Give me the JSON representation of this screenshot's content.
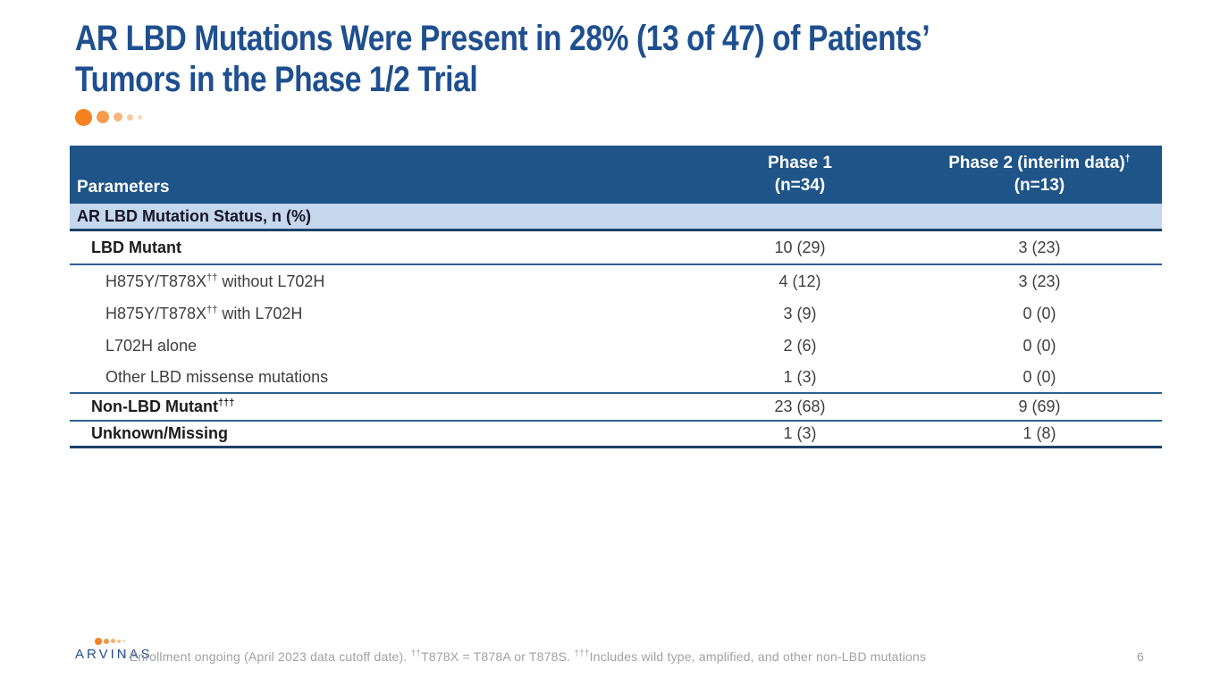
{
  "slide": {
    "title_line1": "AR LBD Mutations Were Present in 28% (13 of 47) of Patients’",
    "title_line2": "Tumors in the Phase 1/2 Trial",
    "page_number": "6"
  },
  "colors": {
    "accent_orange": "#F58220",
    "title_blue": "#1E4F8F",
    "table_header_bg": "#1F5488",
    "section_row_bg": "#C5D7ED",
    "rule_blue": "#2E6091",
    "rule_dark_navy": "#1B4168"
  },
  "table": {
    "header": {
      "col1": "Parameters",
      "col2_line1": "Phase 1",
      "col2_line2": "(n=34)",
      "col3_line1": "Phase 2 (interim data)",
      "col3_sup": "†",
      "col3_line2": "(n=13)"
    },
    "section_label": "AR LBD Mutation Status, n (%)",
    "rows": [
      {
        "pre": "LBD Mutant",
        "sup": "",
        "post": "",
        "p1": "10 (29)",
        "p2": "3 (23)"
      },
      {
        "pre": "H875Y/T878X",
        "sup": "††",
        "post": " without L702H",
        "p1": "4 (12)",
        "p2": "3 (23)"
      },
      {
        "pre": "H875Y/T878X",
        "sup": "††",
        "post": " with L702H",
        "p1": "3 (9)",
        "p2": "0 (0)"
      },
      {
        "pre": "L702H alone",
        "sup": "",
        "post": "",
        "p1": "2 (6)",
        "p2": "0 (0)"
      },
      {
        "pre": "Other LBD missense mutations",
        "sup": "",
        "post": "",
        "p1": "1 (3)",
        "p2": "0 (0)"
      },
      {
        "pre": "Non-LBD Mutant",
        "sup": "†††",
        "post": "",
        "p1": "23 (68)",
        "p2": "9 (69)"
      },
      {
        "pre": "Unknown/Missing",
        "sup": "",
        "post": "",
        "p1": "1 (3)",
        "p2": "1 (8)"
      }
    ]
  },
  "footer": {
    "logo_text": "ARVINAS",
    "fn1_sup": "† ",
    "fn1_text": "Enrollment ongoing (April 2023 data cutoff date). ",
    "fn2_sup": "††",
    "fn2_text": "T878X = T878A or T878S. ",
    "fn3_sup": "†††",
    "fn3_text": "Includes wild type, amplified, and other non-LBD mutations"
  }
}
